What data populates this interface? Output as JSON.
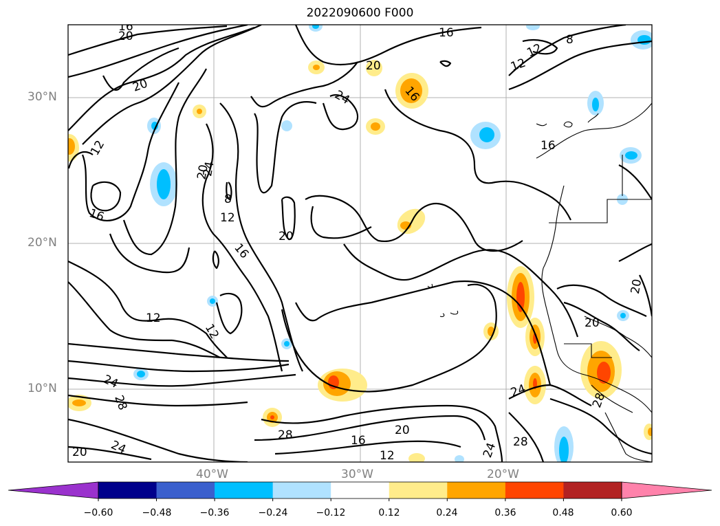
{
  "title": "2022090600 F000",
  "lat_labels": [
    "30°N",
    "20°N",
    "10°N"
  ],
  "lon_labels": [
    "40°W",
    "30°W",
    "20°W"
  ],
  "colorbar": {
    "ticks": [
      "−0.60",
      "−0.48",
      "−0.36",
      "−0.24",
      "−0.12",
      "0.12",
      "0.24",
      "0.36",
      "0.48",
      "0.60"
    ],
    "colors": [
      "#9a32cd",
      "#00008b",
      "#3a5fcd",
      "#00bfff",
      "#b0e2ff",
      "#ffffff",
      "#ffec8b",
      "#ffa500",
      "#ff4500",
      "#b22222",
      "#ff82ab"
    ]
  },
  "contour_labels": [
    "16",
    "20",
    "20",
    "12",
    "16",
    "20",
    "24",
    "24",
    "20",
    "8",
    "12",
    "16",
    "12",
    "20",
    "16",
    "12",
    "12",
    "24",
    "28",
    "20",
    "24",
    "28",
    "20",
    "16",
    "12",
    "24",
    "28",
    "24",
    "28",
    "20",
    "20",
    "16",
    "16",
    "12",
    "8"
  ]
}
